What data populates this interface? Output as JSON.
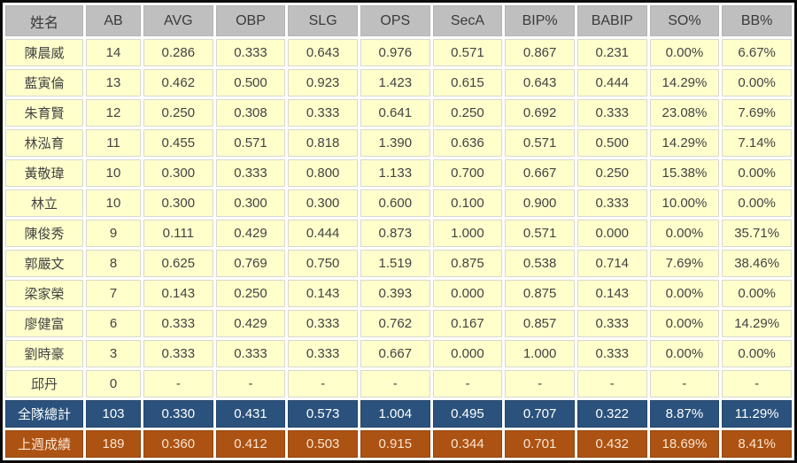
{
  "table": {
    "columns": [
      "姓名",
      "AB",
      "AVG",
      "OBP",
      "SLG",
      "OPS",
      "SecA",
      "BIP%",
      "BABIP",
      "SO%",
      "BB%"
    ],
    "players": [
      {
        "name": "陳晨威",
        "stats": [
          "14",
          "0.286",
          "0.333",
          "0.643",
          "0.976",
          "0.571",
          "0.867",
          "0.231",
          "0.00%",
          "6.67%"
        ]
      },
      {
        "name": "藍寅倫",
        "stats": [
          "13",
          "0.462",
          "0.500",
          "0.923",
          "1.423",
          "0.615",
          "0.643",
          "0.444",
          "14.29%",
          "0.00%"
        ]
      },
      {
        "name": "朱育賢",
        "stats": [
          "12",
          "0.250",
          "0.308",
          "0.333",
          "0.641",
          "0.250",
          "0.692",
          "0.333",
          "23.08%",
          "7.69%"
        ]
      },
      {
        "name": "林泓育",
        "stats": [
          "11",
          "0.455",
          "0.571",
          "0.818",
          "1.390",
          "0.636",
          "0.571",
          "0.500",
          "14.29%",
          "7.14%"
        ]
      },
      {
        "name": "黃敬瑋",
        "stats": [
          "10",
          "0.300",
          "0.333",
          "0.800",
          "1.133",
          "0.700",
          "0.667",
          "0.250",
          "15.38%",
          "0.00%"
        ]
      },
      {
        "name": "林立",
        "stats": [
          "10",
          "0.300",
          "0.300",
          "0.300",
          "0.600",
          "0.100",
          "0.900",
          "0.333",
          "10.00%",
          "0.00%"
        ]
      },
      {
        "name": "陳俊秀",
        "stats": [
          "9",
          "0.111",
          "0.429",
          "0.444",
          "0.873",
          "1.000",
          "0.571",
          "0.000",
          "0.00%",
          "35.71%"
        ]
      },
      {
        "name": "郭嚴文",
        "stats": [
          "8",
          "0.625",
          "0.769",
          "0.750",
          "1.519",
          "0.875",
          "0.538",
          "0.714",
          "7.69%",
          "38.46%"
        ]
      },
      {
        "name": "梁家榮",
        "stats": [
          "7",
          "0.143",
          "0.250",
          "0.143",
          "0.393",
          "0.000",
          "0.875",
          "0.143",
          "0.00%",
          "0.00%"
        ]
      },
      {
        "name": "廖健富",
        "stats": [
          "6",
          "0.333",
          "0.429",
          "0.333",
          "0.762",
          "0.167",
          "0.857",
          "0.333",
          "0.00%",
          "14.29%"
        ]
      },
      {
        "name": "劉時豪",
        "stats": [
          "3",
          "0.333",
          "0.333",
          "0.333",
          "0.667",
          "0.000",
          "1.000",
          "0.333",
          "0.00%",
          "0.00%"
        ]
      },
      {
        "name": "邱丹",
        "stats": [
          "0",
          "-",
          "-",
          "-",
          "-",
          "-",
          "-",
          "-",
          "-",
          "-"
        ]
      }
    ],
    "summary": [
      {
        "name": "全隊總計",
        "style": "team-total",
        "stats": [
          "103",
          "0.330",
          "0.431",
          "0.573",
          "1.004",
          "0.495",
          "0.707",
          "0.322",
          "8.87%",
          "11.29%"
        ]
      },
      {
        "name": "上週成績",
        "style": "last-week",
        "stats": [
          "189",
          "0.360",
          "0.412",
          "0.503",
          "0.915",
          "0.344",
          "0.701",
          "0.432",
          "18.69%",
          "8.41%"
        ]
      }
    ]
  },
  "colors": {
    "frame": "#0a0a0a",
    "header_bg": "#bfbfbf",
    "header_text": "#3a3a3a",
    "row_bg": "#ffffcc",
    "row_text": "#434343",
    "team_total_bg": "#2a527c",
    "team_total_text": "#ffffff",
    "last_week_bg": "#ac5212",
    "last_week_text": "#fbe5d2"
  }
}
